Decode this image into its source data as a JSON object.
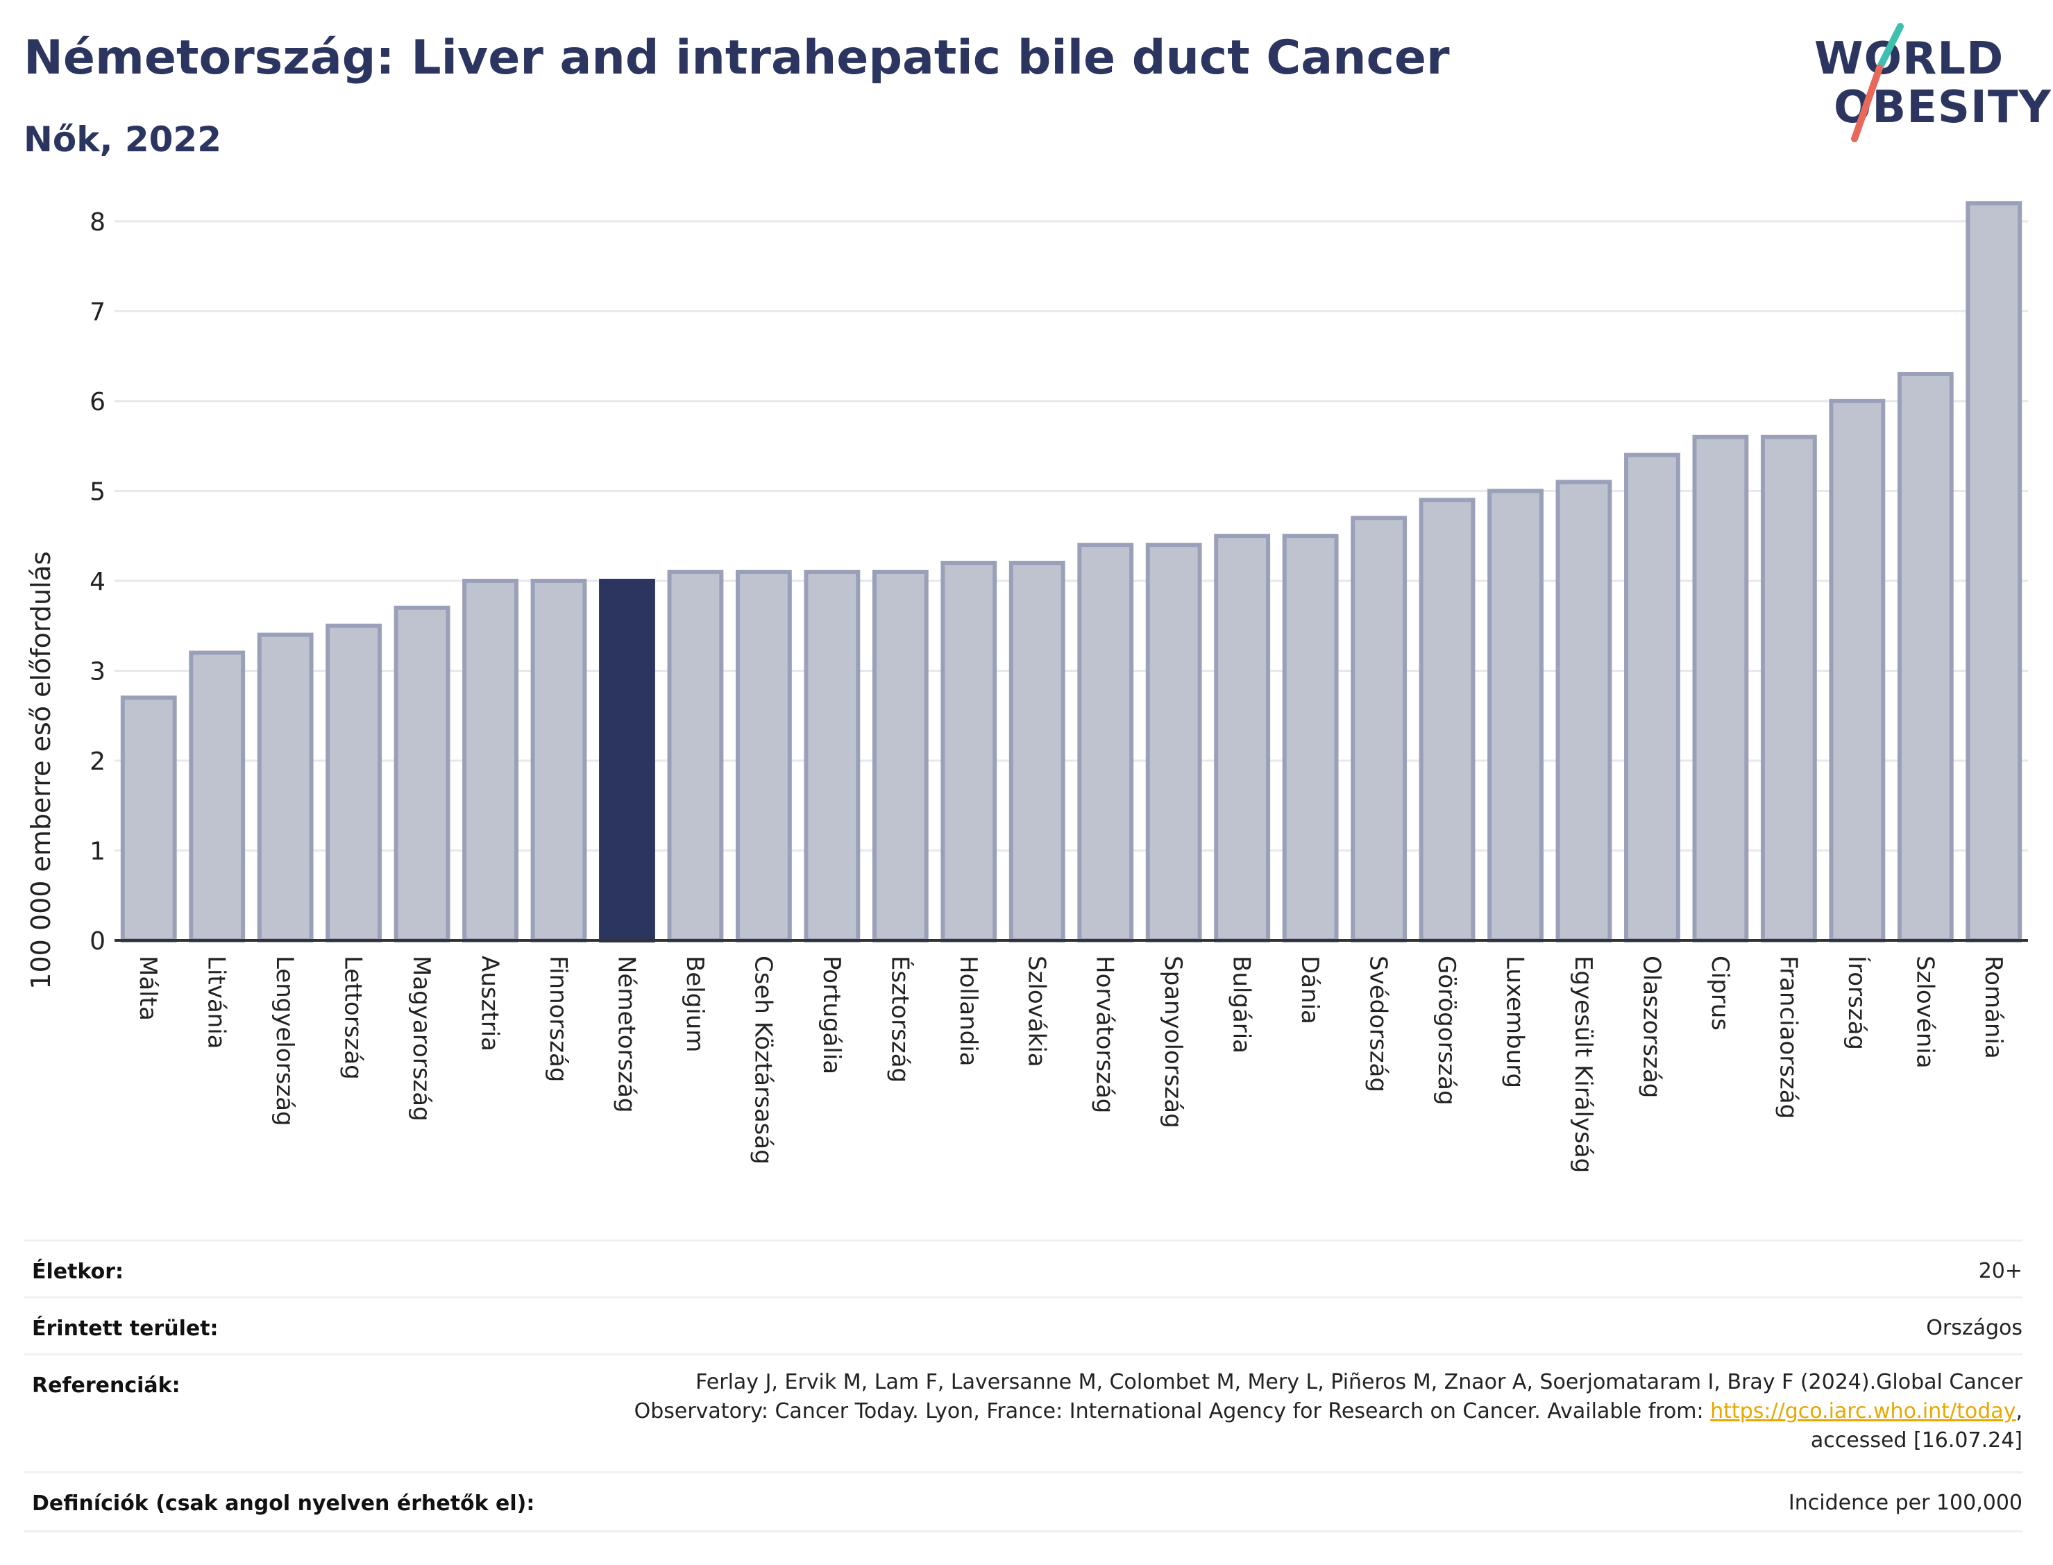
{
  "header": {
    "title": "Németország: Liver and intrahepatic bile duct Cancer",
    "subtitle": "Nők, 2022"
  },
  "logo": {
    "line1": "WORLD",
    "line2": "OBESITY",
    "colors": {
      "text": "#2b3560",
      "slash_top": "#3fbfb0",
      "slash_bottom": "#e8685a"
    }
  },
  "chart_data": {
    "type": "bar",
    "ylabel": "100 000 emberre eső előfordulás",
    "xlabel": "",
    "ylim": [
      0,
      8.3
    ],
    "yticks": [
      0,
      1,
      2,
      3,
      4,
      5,
      6,
      7,
      8
    ],
    "grid": true,
    "highlight": "Németország",
    "colors": {
      "bar": "#bfc3cf",
      "bar_edge": "#9aa0b8",
      "highlight": "#2b3560",
      "axis": "#333333",
      "grid": "#e6e8ee"
    },
    "categories": [
      "Málta",
      "Litvánia",
      "Lengyelország",
      "Lettország",
      "Magyarország",
      "Ausztria",
      "Finnország",
      "Németország",
      "Belgium",
      "Cseh Köztársaság",
      "Portugália",
      "Észtország",
      "Hollandia",
      "Szlovákia",
      "Horvátország",
      "Spanyolország",
      "Bulgária",
      "Dánia",
      "Svédország",
      "Görögország",
      "Luxemburg",
      "Egyesült Királyság",
      "Olaszország",
      "Ciprus",
      "Franciaország",
      "Írország",
      "Szlovénia",
      "Románia"
    ],
    "values": [
      2.7,
      3.2,
      3.4,
      3.5,
      3.7,
      4.0,
      4.0,
      4.0,
      4.1,
      4.1,
      4.1,
      4.1,
      4.2,
      4.2,
      4.4,
      4.4,
      4.5,
      4.5,
      4.7,
      4.9,
      5.0,
      5.1,
      5.4,
      5.6,
      5.6,
      6.0,
      6.3,
      8.2
    ]
  },
  "footer": {
    "age": {
      "label": "Életkor:",
      "value": "20+"
    },
    "area": {
      "label": "Érintett terület:",
      "value": "Országos"
    },
    "refs": {
      "label": "Referenciák:",
      "line1": "Ferlay J, Ervik M, Lam F, Laversanne M, Colombet M, Mery L, Piñeros M, Znaor A, Soerjomataram I, Bray F (2024).Global Cancer",
      "line2_pre": "Observatory: Cancer Today. Lyon, France: International Agency for Research on Cancer. Available from: ",
      "link": "https://gco.iarc.who.int/today",
      "line2_post": ",",
      "line3": "accessed [16.07.24]"
    },
    "defs": {
      "label": "Definíciók (csak angol nyelven érhetők el):",
      "value": "Incidence per 100,000"
    }
  }
}
